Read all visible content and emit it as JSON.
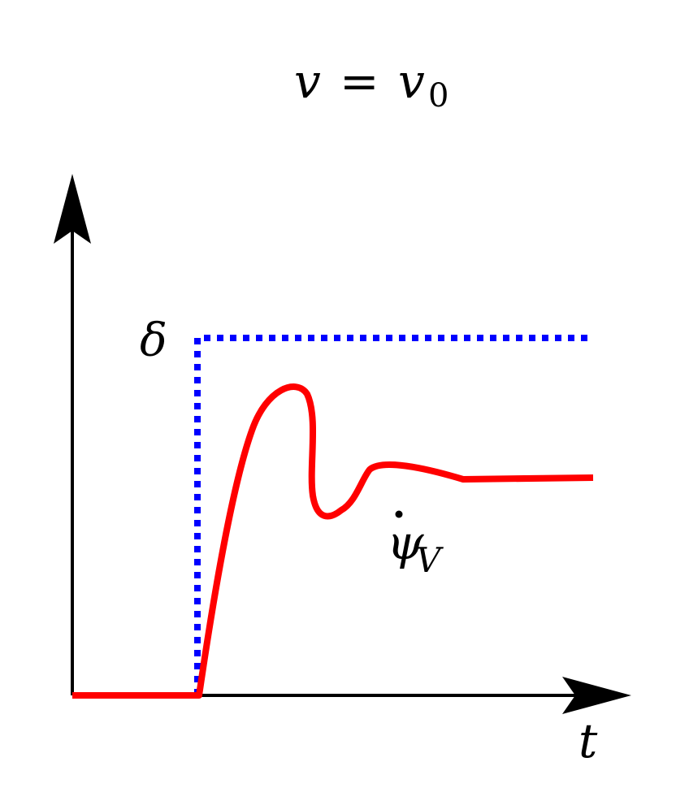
{
  "title": {
    "lhs": "v",
    "eq": "=",
    "rhs": "v",
    "rhs_sub": "0"
  },
  "labels": {
    "delta": "δ",
    "psi": "ψ",
    "psi_dot": "˙",
    "psi_sub": "V",
    "t_axis": "t"
  },
  "colors": {
    "axis": "#000000",
    "input": "#0000ff",
    "response": "#ff0000"
  },
  "signals": {
    "input_step": {
      "name": "δ",
      "style": "dotted",
      "shape": "step"
    },
    "response": {
      "name": "ψ̇_V",
      "style": "solid",
      "shape": "damped overshoot settling to steady value"
    }
  }
}
